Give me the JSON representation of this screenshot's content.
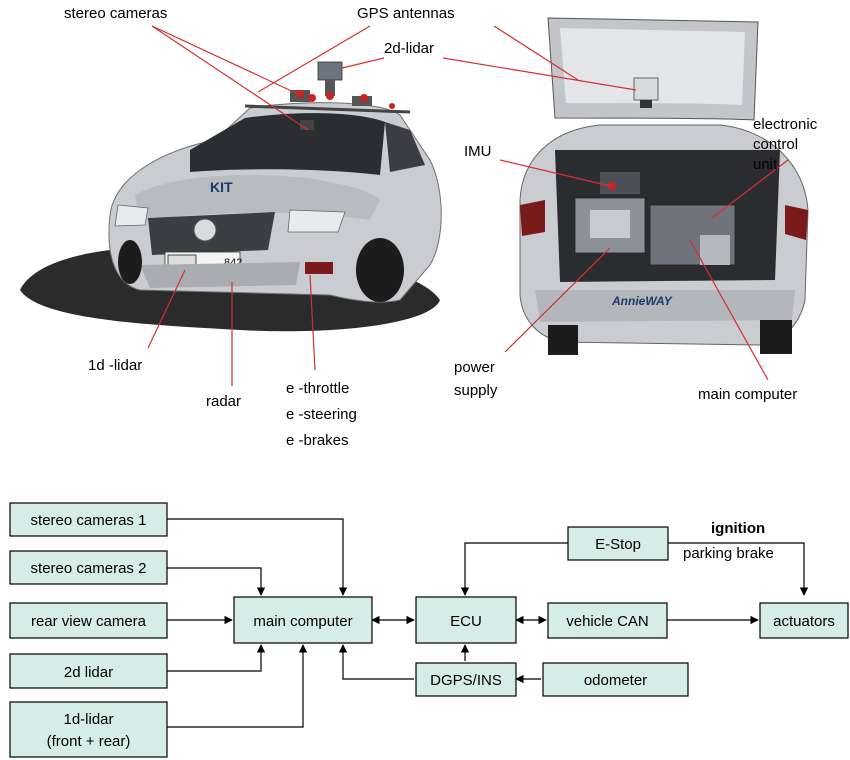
{
  "photo_labels": {
    "stereo_cameras": "stereo cameras",
    "gps_antennas": "GPS  antennas",
    "lidar_2d": "2d-lidar",
    "imu": "IMU",
    "ecu_line1": "electronic",
    "ecu_line2": "control",
    "ecu_line3": "unit",
    "lidar_1d": "1d -lidar",
    "radar": "radar",
    "e_throttle": "e -throttle",
    "e_steering": "e -steering",
    "e_brakes": "e -brakes",
    "power_supply_line1": "power",
    "power_supply_line2": "supply",
    "main_computer": "main computer"
  },
  "car_marks": {
    "front_logo": "KIT",
    "front_plate": "842",
    "rear_logo": "AnnieWAY"
  },
  "colors": {
    "box_fill": "#d6ece6",
    "leader_line": "#d43030",
    "car_body": "#c9ccd0"
  },
  "diagram": {
    "boxes": {
      "stereo_cameras_1": "stereo cameras 1",
      "stereo_cameras_2": "stereo cameras 2",
      "rear_view_camera": "rear view camera",
      "lidar_2d": "2d lidar",
      "lidar_1d_line1": "1d-lidar",
      "lidar_1d_line2": "(front + rear)",
      "main_computer": "main computer",
      "ecu": "ECU",
      "dgps_ins": "DGPS/INS",
      "e_stop": "E-Stop",
      "vehicle_can": "vehicle CAN",
      "odometer": "odometer",
      "actuators": "actuators"
    },
    "edge_labels": {
      "ignition": "ignition",
      "parking_brake": "parking brake"
    }
  }
}
